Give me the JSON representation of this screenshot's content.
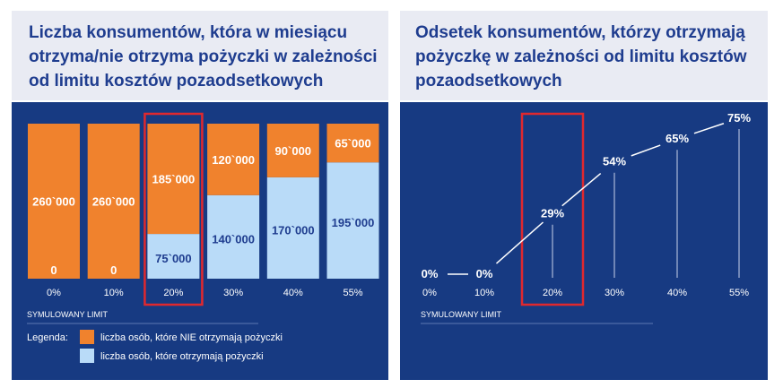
{
  "left_panel": {
    "title_lines": [
      "Liczba konsumentów, która w miesiącu",
      "otrzyma/nie otrzyma pożyczki w zależności",
      "od limitu kosztów pozaodsetkowych"
    ],
    "axis_title": "SYMULOWANY LIMIT",
    "legend_label": "Legenda:",
    "legend_items": [
      "liczba osób, które NIE otrzymają pożyczki",
      "liczba osób, które otrzymają pożyczki"
    ]
  },
  "right_panel": {
    "title_lines": [
      "Odsetek konsumentów, którzy otrzymają",
      "pożyczkę w zależności od limitu kosztów",
      "pozaodsetkowych"
    ],
    "axis_title": "SYMULOWANY LIMIT"
  },
  "colors": {
    "panel_bg": "#173a82",
    "header_bg": "#e9ebf3",
    "title_text": "#1f3d8f",
    "not_receive": "#f0822d",
    "receive": "#b9dbf8",
    "highlight": "#e0282e"
  },
  "chart_data": [
    {
      "type": "bar",
      "stacked": true,
      "title": "Liczba konsumentów, która w miesiącu otrzyma/nie otrzyma pożyczki w zależności od limitu kosztów pozaodsetkowych",
      "xlabel": "SYMULOWANY LIMIT",
      "categories": [
        "0%",
        "10%",
        "20%",
        "30%",
        "40%",
        "55%"
      ],
      "series": [
        {
          "name": "liczba osób, które otrzymają pożyczki",
          "values": [
            0,
            0,
            75000,
            140000,
            170000,
            195000
          ],
          "labels": [
            "0",
            "0",
            "75`000",
            "140`000",
            "170`000",
            "195`000"
          ]
        },
        {
          "name": "liczba osób, które NIE otrzymają pożyczki",
          "values": [
            260000,
            260000,
            185000,
            120000,
            90000,
            65000
          ],
          "labels": [
            "260`000",
            "260`000",
            "185`000",
            "120`000",
            "90`000",
            "65`000"
          ]
        }
      ],
      "highlight_category": "20%"
    },
    {
      "type": "line",
      "title": "Odsetek konsumentów, którzy otrzymają pożyczkę w zależności od limitu kosztów pozaodsetkowych",
      "xlabel": "SYMULOWANY LIMIT",
      "x": [
        "0%",
        "10%",
        "20%",
        "30%",
        "40%",
        "55%"
      ],
      "values": [
        0,
        0,
        29,
        54,
        65,
        75
      ],
      "labels": [
        "0%",
        "0%",
        "29%",
        "54%",
        "65%",
        "75%"
      ],
      "highlight_category": "20%"
    }
  ]
}
